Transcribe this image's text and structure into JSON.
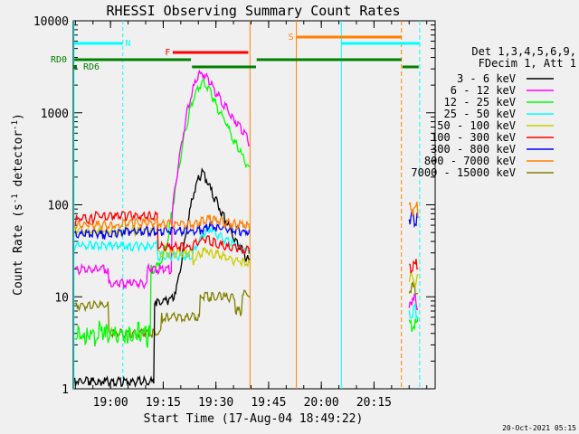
{
  "chart_data": {
    "type": "line",
    "title": "RHESSI Observing Summary Count Rates",
    "xlabel": "Start Time (17-Aug-04 18:49:22)",
    "ylabel_main": "Count Rate (s",
    "ylabel_sup1": "-1",
    "ylabel_mid": " detector",
    "ylabel_sup2": "-1",
    "ylabel_end": ")",
    "yscale": "log",
    "ylim": [
      1,
      10000
    ],
    "xlim_minutes": [
      0,
      103
    ],
    "x_ticks": [
      {
        "label": "19:00",
        "minute": 10.6
      },
      {
        "label": "19:15",
        "minute": 25.6
      },
      {
        "label": "19:30",
        "minute": 40.6
      },
      {
        "label": "19:45",
        "minute": 55.6
      },
      {
        "label": "20:00",
        "minute": 70.6
      },
      {
        "label": "20:15",
        "minute": 85.6
      }
    ],
    "y_ticks": [
      {
        "label": "1",
        "value": 1
      },
      {
        "label": "10",
        "value": 10
      },
      {
        "label": "100",
        "value": 100
      },
      {
        "label": "1000",
        "value": 1000
      },
      {
        "label": "10000",
        "value": 10000
      }
    ],
    "legend_header": [
      "Det 1,3,4,5,6,9,",
      "FDecim 1, Att 1"
    ],
    "legend": [
      {
        "label": "3 - 6 keV",
        "color": "#000000"
      },
      {
        "label": "6 - 12 keV",
        "color": "#ff00ff"
      },
      {
        "label": "12 - 25 keV",
        "color": "#00ff00"
      },
      {
        "label": "25 - 50 keV",
        "color": "#00ffff"
      },
      {
        "label": "50 - 100 keV",
        "color": "#cccc00"
      },
      {
        "label": "100 - 300 keV",
        "color": "#ff0000"
      },
      {
        "label": "300 - 800 keV",
        "color": "#0000ff"
      },
      {
        "label": "800 - 7000 keV",
        "color": "#ff8000"
      },
      {
        "label": "7000 - 15000 keV",
        "color": "#808000"
      }
    ],
    "flag_labels": {
      "N": "N",
      "F": "F",
      "S": "S",
      "RD0": "RD0",
      "RD6": "RD6"
    },
    "timestamp": "20-Oct-2021 05:15"
  }
}
